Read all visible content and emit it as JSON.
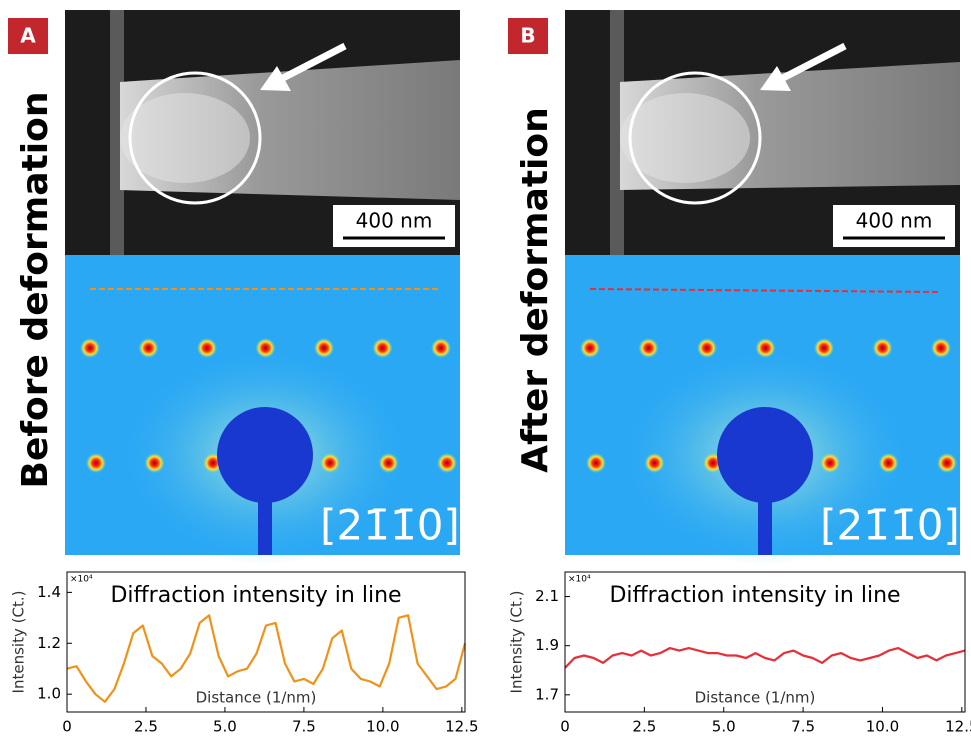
{
  "panels": [
    {
      "label": "A",
      "side_title": "Before deformation",
      "scale_bar": "400 nm",
      "zone_axis": "[21̄1̄0]"
    },
    {
      "label": "B",
      "side_title": "After deformation",
      "scale_bar": "400 nm",
      "zone_axis": "[21̄1̄0]"
    }
  ],
  "chart_data": [
    {
      "type": "line",
      "title": "Diffraction intensity in line",
      "xlabel": "Distance (1/nm)",
      "ylabel": "Intensity (Ct.)",
      "y_multiplier": "×10⁴",
      "x": [
        0,
        0.3,
        0.6,
        0.9,
        1.2,
        1.5,
        1.8,
        2.1,
        2.4,
        2.7,
        3.0,
        3.3,
        3.6,
        3.9,
        4.2,
        4.5,
        4.8,
        5.1,
        5.4,
        5.7,
        6.0,
        6.3,
        6.6,
        6.9,
        7.2,
        7.5,
        7.8,
        8.1,
        8.4,
        8.7,
        9.0,
        9.3,
        9.6,
        9.9,
        10.2,
        10.5,
        10.8,
        11.1,
        11.4,
        11.7,
        12.0,
        12.3,
        12.6
      ],
      "series": [
        {
          "color": "#f0921a",
          "values": [
            1.1,
            1.11,
            1.05,
            1.0,
            0.97,
            1.02,
            1.12,
            1.24,
            1.27,
            1.15,
            1.12,
            1.07,
            1.1,
            1.16,
            1.28,
            1.31,
            1.15,
            1.07,
            1.09,
            1.1,
            1.16,
            1.27,
            1.28,
            1.12,
            1.05,
            1.06,
            1.04,
            1.1,
            1.22,
            1.25,
            1.1,
            1.06,
            1.05,
            1.03,
            1.12,
            1.3,
            1.31,
            1.12,
            1.07,
            1.02,
            1.03,
            1.06,
            1.2
          ]
        }
      ],
      "xlim": [
        0,
        12.6
      ],
      "xticks": [
        0,
        2.5,
        {
          "value": 5,
          "label": "5.0"
        },
        7.5,
        {
          "value": 10,
          "label": "10.0"
        },
        12.5
      ],
      "ylim": [
        0.93,
        1.48
      ],
      "yticks": [
        {
          "value": 1,
          "label": "1.0"
        },
        1.2,
        1.4
      ]
    },
    {
      "type": "line",
      "title": "Diffraction intensity in line",
      "xlabel": "Distance (1/nm)",
      "ylabel": "Intensity (Ct.)",
      "y_multiplier": "×10⁴",
      "x": [
        0,
        0.3,
        0.6,
        0.9,
        1.2,
        1.5,
        1.8,
        2.1,
        2.4,
        2.7,
        3.0,
        3.3,
        3.6,
        3.9,
        4.2,
        4.5,
        4.8,
        5.1,
        5.4,
        5.7,
        6.0,
        6.3,
        6.6,
        6.9,
        7.2,
        7.5,
        7.8,
        8.1,
        8.4,
        8.7,
        9.0,
        9.3,
        9.6,
        9.9,
        10.2,
        10.5,
        10.8,
        11.1,
        11.4,
        11.7,
        12.0,
        12.3,
        12.6
      ],
      "series": [
        {
          "color": "#e5303a",
          "values": [
            1.81,
            1.85,
            1.86,
            1.85,
            1.83,
            1.86,
            1.87,
            1.86,
            1.88,
            1.86,
            1.87,
            1.89,
            1.88,
            1.89,
            1.88,
            1.87,
            1.87,
            1.86,
            1.86,
            1.85,
            1.87,
            1.85,
            1.84,
            1.87,
            1.88,
            1.86,
            1.85,
            1.83,
            1.86,
            1.87,
            1.85,
            1.84,
            1.85,
            1.86,
            1.88,
            1.89,
            1.87,
            1.85,
            1.86,
            1.84,
            1.86,
            1.87,
            1.88
          ]
        }
      ],
      "xlim": [
        0,
        12.6
      ],
      "xticks": [
        0,
        2.5,
        {
          "value": 5,
          "label": "5.0"
        },
        7.5,
        {
          "value": 10,
          "label": "10.0"
        },
        12.5
      ],
      "ylim": [
        1.63,
        2.2
      ],
      "yticks": [
        1.7,
        1.9,
        2.1
      ]
    }
  ]
}
